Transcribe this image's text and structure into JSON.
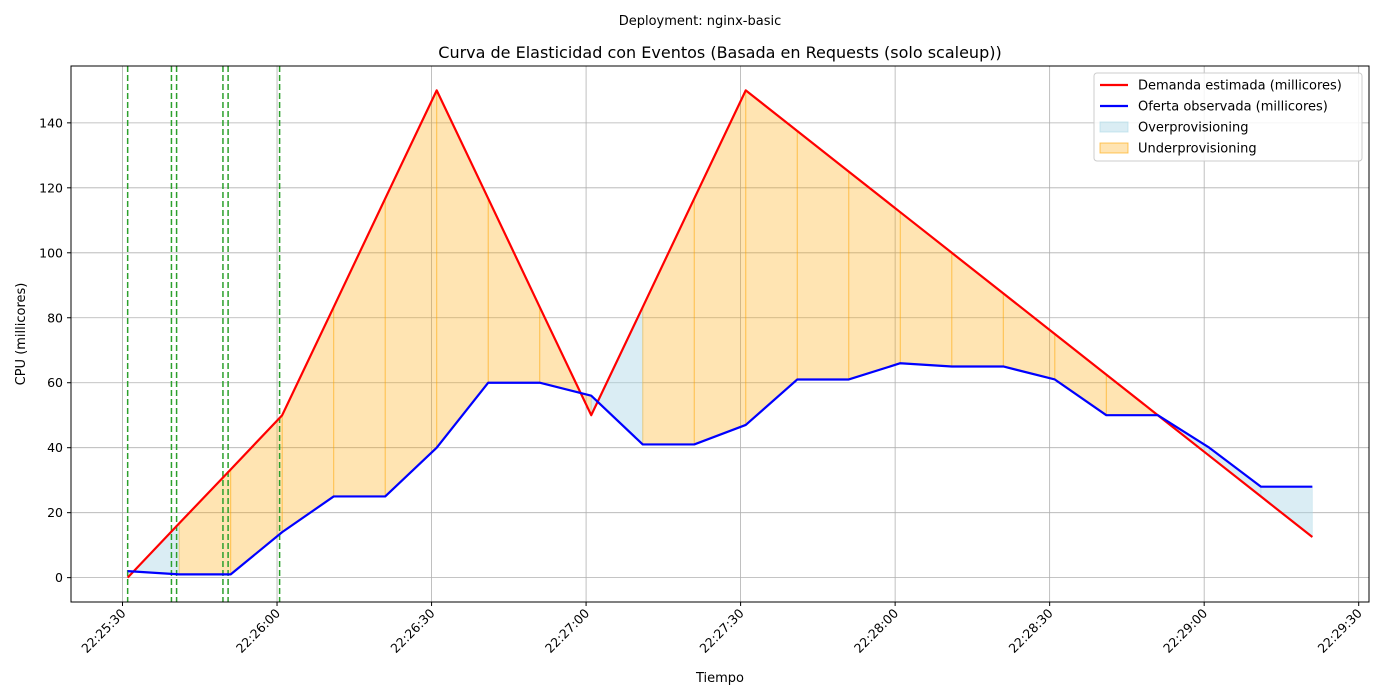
{
  "chart_data": {
    "type": "line",
    "suptitle": "Deployment: nginx-basic",
    "title": "Curva de Elasticidad con Eventos (Basada en Requests (solo scaleup))",
    "xlabel": "Tiempo",
    "ylabel": "CPU (millicores)",
    "xlim": [
      "22:25:20",
      "22:29:32"
    ],
    "ylim": [
      -7.5,
      157.5
    ],
    "x_ticks": [
      "22:25:30",
      "22:26:00",
      "22:26:30",
      "22:27:00",
      "22:27:30",
      "22:28:00",
      "22:28:30",
      "22:29:00",
      "22:29:30"
    ],
    "y_ticks": [
      0,
      20,
      40,
      60,
      80,
      100,
      120,
      140
    ],
    "grid": true,
    "legend_position": "top-right",
    "x": [
      "22:25:31",
      "22:25:41",
      "22:25:51",
      "22:26:01",
      "22:26:11",
      "22:26:21",
      "22:26:31",
      "22:26:41",
      "22:26:51",
      "22:27:01",
      "22:27:11",
      "22:27:21",
      "22:27:31",
      "22:27:41",
      "22:27:51",
      "22:28:01",
      "22:28:11",
      "22:28:21",
      "22:28:31",
      "22:28:41",
      "22:28:51",
      "22:29:01",
      "22:29:11",
      "22:29:21"
    ],
    "series": [
      {
        "name": "Demanda estimada (millicores)",
        "color": "#ff0000",
        "values": [
          0,
          16.7,
          33.3,
          50,
          83.3,
          116.7,
          150,
          116.7,
          83.3,
          50,
          83.3,
          116.7,
          150,
          137.5,
          125,
          112.5,
          100,
          87.5,
          75,
          62.5,
          50,
          37.5,
          25,
          12.5
        ]
      },
      {
        "name": "Oferta observada (millicores)",
        "color": "#0000ff",
        "values": [
          2,
          1,
          1,
          14,
          25,
          25,
          40,
          60,
          60,
          56,
          41,
          41,
          47,
          61,
          61,
          66,
          65,
          65,
          61,
          50,
          50,
          40,
          28,
          28
        ]
      }
    ],
    "fills": [
      {
        "name": "Overprovisioning",
        "color": "#add8e6"
      },
      {
        "name": "Underprovisioning",
        "color": "#ffa500"
      }
    ],
    "event_lines": {
      "color": "#2ca02c",
      "times": [
        "22:25:31",
        "22:25:39.5",
        "22:25:40.5",
        "22:25:49.5",
        "22:25:50.5",
        "22:26:00.5"
      ]
    }
  }
}
